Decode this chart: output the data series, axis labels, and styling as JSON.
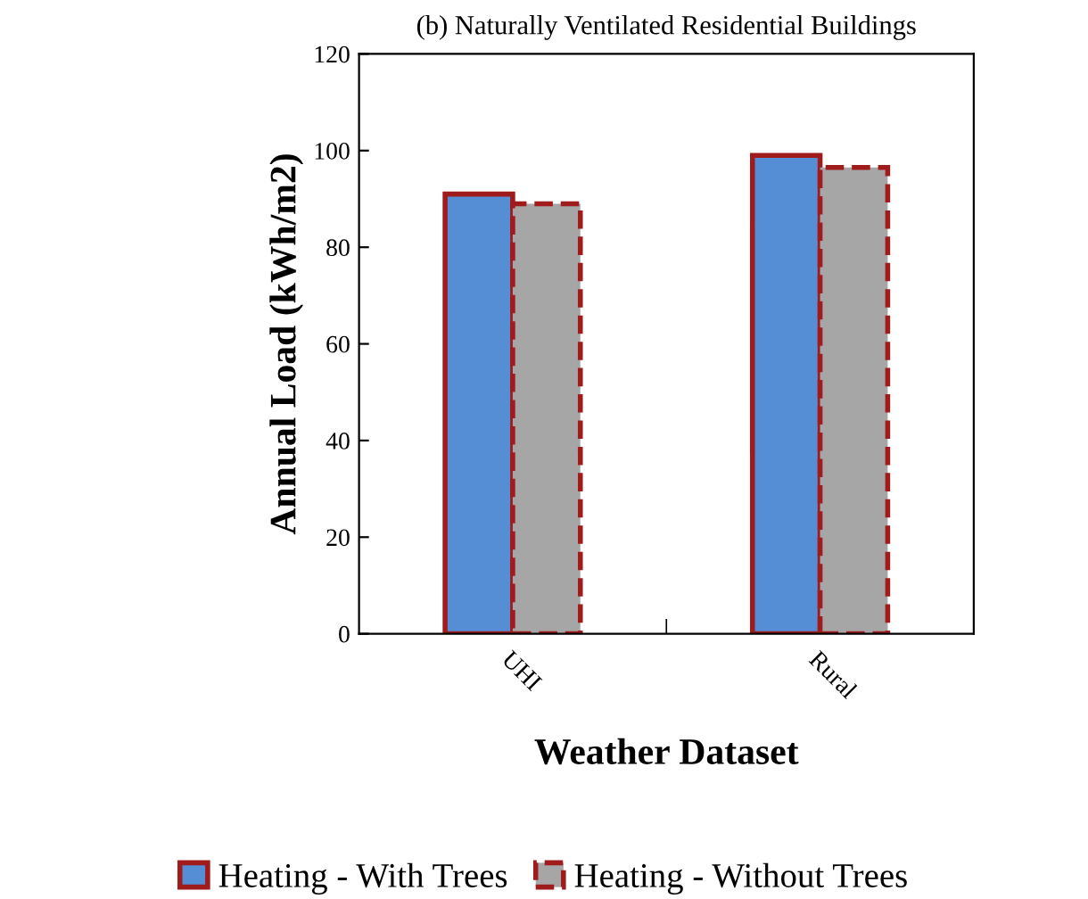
{
  "chart_data": {
    "type": "bar",
    "title": "(b) Naturally Ventilated Residential Buildings",
    "xlabel": "Weather Dataset",
    "ylabel": "Annual Load (kWh/m2)",
    "categories": [
      "UHI",
      "Rural"
    ],
    "series": [
      {
        "name": "Heating - With Trees",
        "color": "#558ed5",
        "values": [
          91,
          99
        ],
        "line_style": "solid"
      },
      {
        "name": "Heating - Without Trees",
        "color": "#a6a6a6",
        "values": [
          89,
          96.5
        ],
        "line_style": "dashed"
      }
    ],
    "ylim": [
      0,
      120
    ],
    "yticks": [
      0,
      20,
      40,
      60,
      80,
      100,
      120
    ],
    "grid": false,
    "legend": "bottom"
  }
}
